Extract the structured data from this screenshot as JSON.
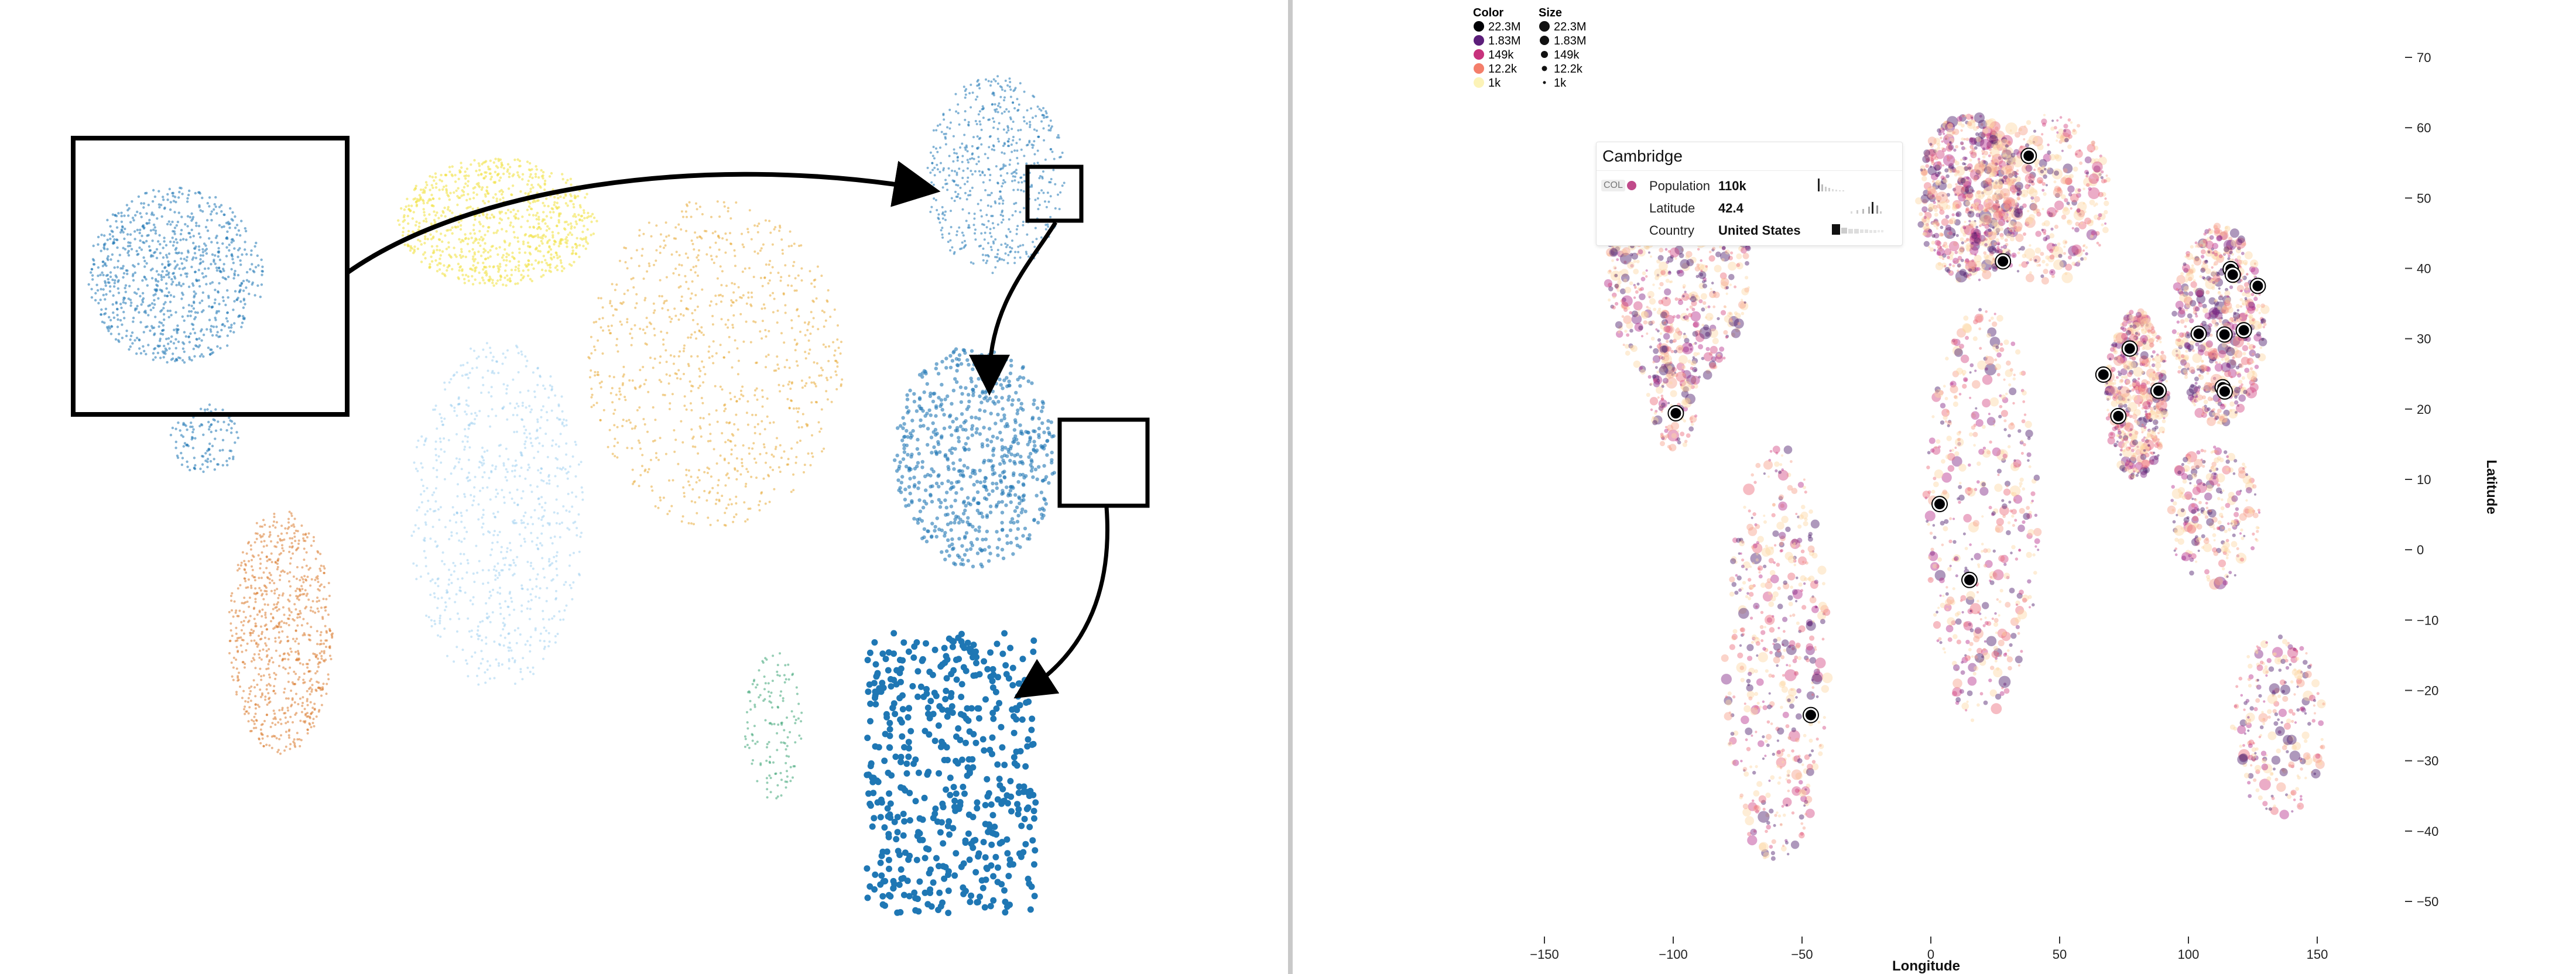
{
  "left_panel": {
    "description_free": true
  },
  "right_panel": {
    "legend": {
      "color": {
        "title": "Color",
        "items": [
          {
            "label": "22.3M",
            "color": "#000004"
          },
          {
            "label": "1.83M",
            "color": "#5c1e7a"
          },
          {
            "label": "149k",
            "color": "#c7327c"
          },
          {
            "label": "12.2k",
            "color": "#f47e6a"
          },
          {
            "label": "1k",
            "color": "#fcf3b7"
          }
        ]
      },
      "size": {
        "title": "Size",
        "items": [
          {
            "label": "22.3M"
          },
          {
            "label": "1.83M"
          },
          {
            "label": "149k"
          },
          {
            "label": "12.2k"
          },
          {
            "label": "1k"
          }
        ]
      }
    },
    "tooltip": {
      "title": "Cambridge",
      "tag": "COL",
      "rows": [
        {
          "key": "Population",
          "value": "110k"
        },
        {
          "key": "Latitude",
          "value": "42.4"
        },
        {
          "key": "Country",
          "value": "United States"
        }
      ]
    },
    "axes": {
      "x_title": "Longitude",
      "y_title": "Latitude",
      "x_ticks": [
        "−150",
        "−100",
        "−50",
        "0",
        "50",
        "100",
        "150"
      ],
      "y_ticks": [
        "70",
        "60",
        "50",
        "40",
        "30",
        "20",
        "10",
        "0",
        "−10",
        "−20",
        "−30",
        "−40",
        "−50"
      ]
    }
  },
  "colors": {
    "north_america": "#1f77b4",
    "europe": "#f2e34b",
    "asia": "#e6a428",
    "africa": "#8fc8ee",
    "south_america": "#d8711f",
    "oceania": "#2e9d6c",
    "divider": "#c9c9c9"
  }
}
